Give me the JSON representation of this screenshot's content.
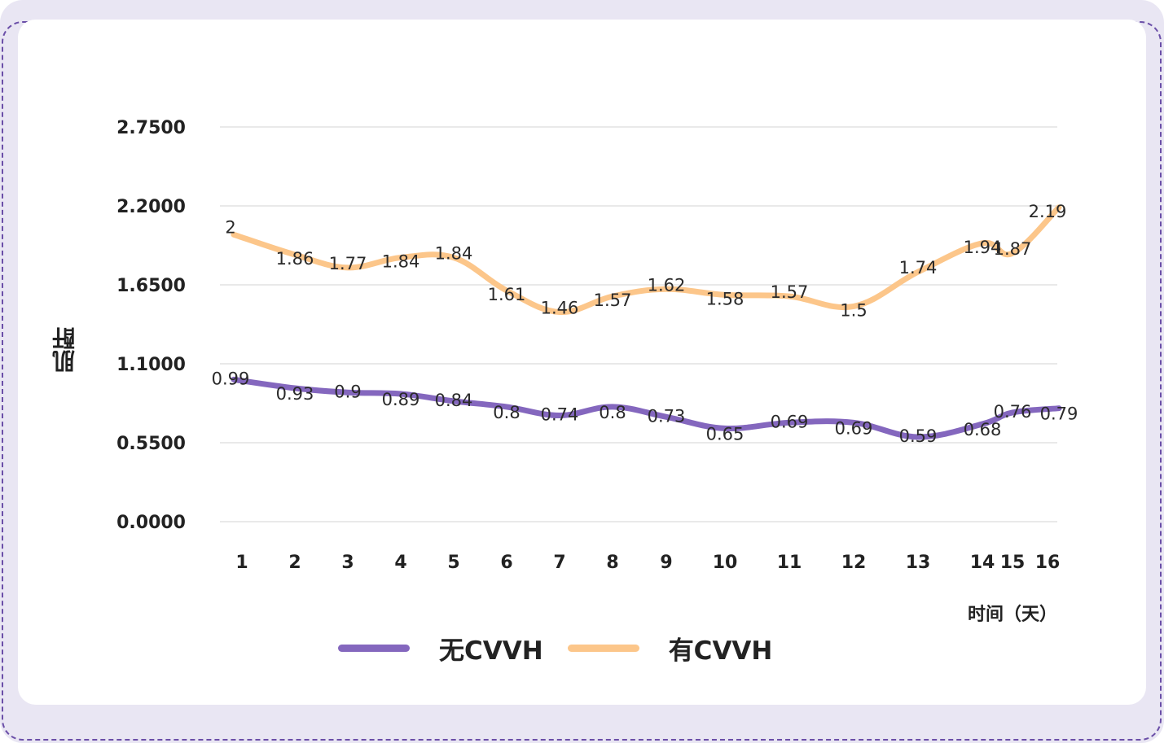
{
  "chart_data": {
    "type": "line",
    "title": "",
    "ylabel": "肌酐",
    "xlabel": "时间（天）",
    "ylim": [
      0,
      2.75
    ],
    "yticks": [
      "0.0000",
      "0.5500",
      "1.1000",
      "1.6500",
      "2.2000",
      "2.7500"
    ],
    "ytick_values": [
      0,
      0.55,
      1.1,
      1.65,
      2.2,
      2.75
    ],
    "categories": [
      "1",
      "2",
      "3",
      "4",
      "5",
      "6",
      "7",
      "8",
      "9",
      "10",
      "11",
      "12",
      "13",
      "14",
      "15",
      "16"
    ],
    "series": [
      {
        "name": "无CVVH",
        "color": "#8467be",
        "values": [
          0.99,
          0.93,
          0.9,
          0.89,
          0.84,
          0.8,
          0.74,
          0.8,
          0.73,
          0.65,
          0.69,
          0.69,
          0.59,
          0.68,
          0.76,
          0.79
        ],
        "labels": [
          "0.99",
          "0.93",
          "0.9",
          "0.89",
          "0.84",
          "0.8",
          "0.74",
          "0.8",
          "0.73",
          "0.65",
          "0.69",
          "0.69",
          "0.59",
          "0.68",
          "0.76",
          "0.79"
        ]
      },
      {
        "name": "有CVVH",
        "color": "#fcc68a",
        "values": [
          2,
          1.86,
          1.77,
          1.84,
          1.84,
          1.61,
          1.46,
          1.57,
          1.62,
          1.58,
          1.57,
          1.5,
          1.74,
          1.94,
          1.87,
          2.19
        ],
        "labels": [
          "2",
          "1.86",
          "1.77",
          "1.84",
          "1.84",
          "1.61",
          "1.46",
          "1.57",
          "1.62",
          "1.58",
          "1.57",
          "1.5",
          "1.74",
          "1.94",
          "1.87",
          "2.19"
        ]
      }
    ],
    "legend_position": "bottom",
    "grid": true
  }
}
